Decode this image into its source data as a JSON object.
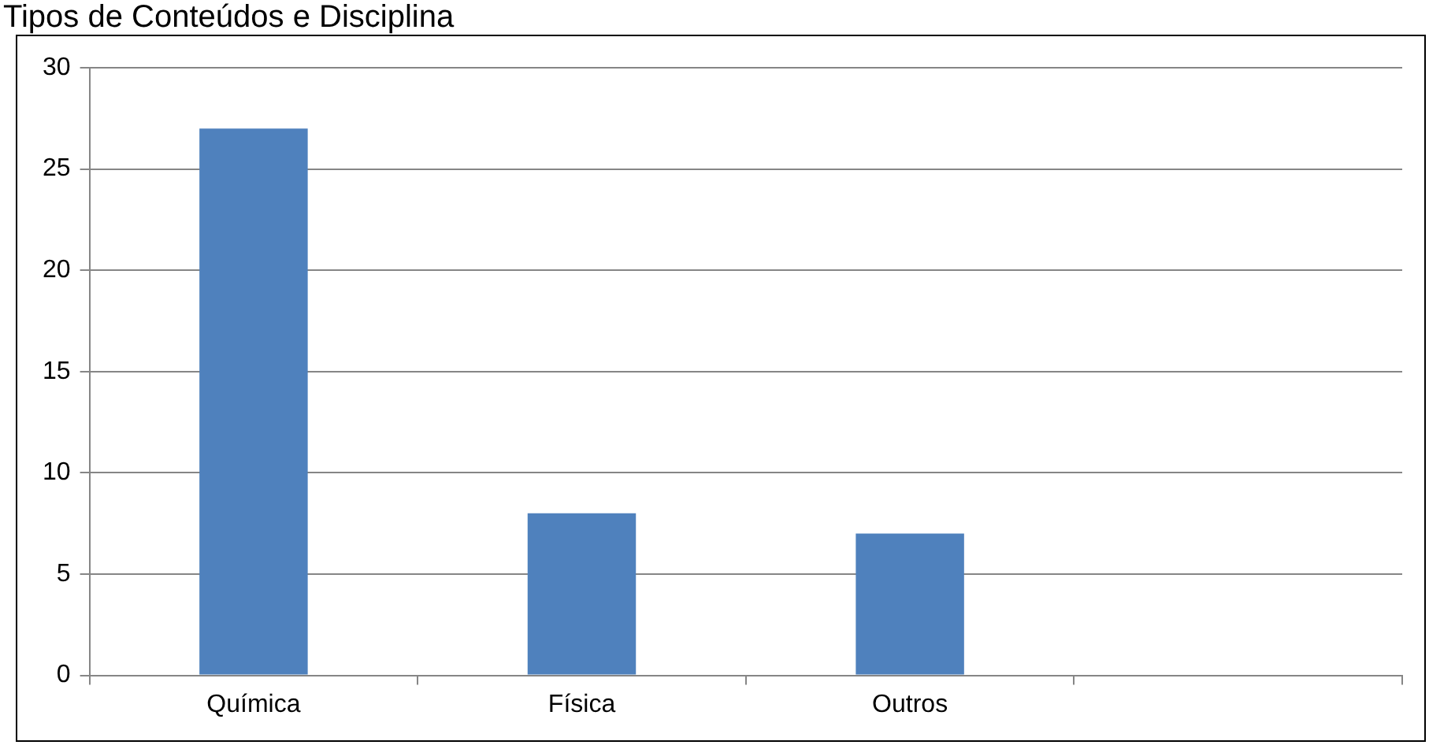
{
  "chart_data": {
    "type": "bar",
    "title": "Tipos de Conteúdos e Disciplina",
    "categories": [
      "Química",
      "Física",
      "Outros",
      null
    ],
    "values": [
      27,
      8,
      7,
      null
    ],
    "color": "#4f81bd",
    "ylim": [
      0,
      30
    ],
    "yticks": [
      0,
      5,
      10,
      15,
      20,
      25,
      30
    ],
    "grid": "y",
    "legend": false
  }
}
